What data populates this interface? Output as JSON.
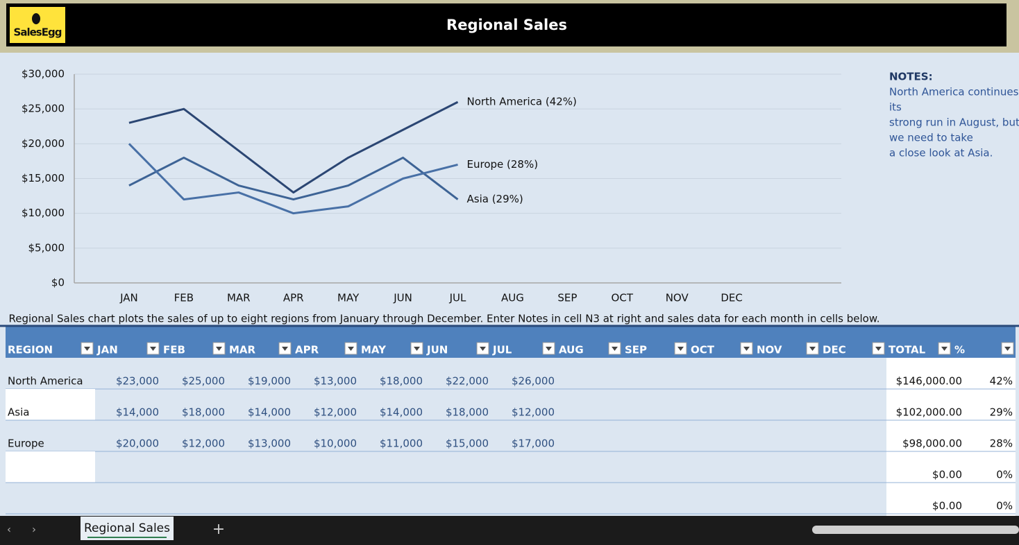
{
  "header": {
    "logo": "SalesEgg",
    "title": "Regional Sales"
  },
  "chart": {
    "type": "line",
    "categories": [
      "JAN",
      "FEB",
      "MAR",
      "APR",
      "MAY",
      "JUN",
      "JUL",
      "AUG",
      "SEP",
      "OCT",
      "NOV",
      "DEC"
    ],
    "ylim": [
      0,
      30000
    ],
    "yticks": [
      {
        "value": 0,
        "label": "$0"
      },
      {
        "value": 5000,
        "label": "$5,000"
      },
      {
        "value": 10000,
        "label": "$10,000"
      },
      {
        "value": 15000,
        "label": "$15,000"
      },
      {
        "value": 20000,
        "label": "$20,000"
      },
      {
        "value": 25000,
        "label": "$25,000"
      },
      {
        "value": 30000,
        "label": "$30,000"
      }
    ],
    "grid": true,
    "series": [
      {
        "name": "North America (42%)",
        "color": "#2b4673",
        "values": [
          23000,
          25000,
          19000,
          13000,
          18000,
          22000,
          26000,
          null,
          null,
          null,
          null,
          null
        ]
      },
      {
        "name": "Asia (29%)",
        "color": "#3d6395",
        "values": [
          14000,
          18000,
          14000,
          12000,
          14000,
          18000,
          12000,
          null,
          null,
          null,
          null,
          null
        ]
      },
      {
        "name": "Europe (28%)",
        "color": "#4870a6",
        "values": [
          20000,
          12000,
          13000,
          10000,
          11000,
          15000,
          17000,
          null,
          null,
          null,
          null,
          null
        ]
      }
    ]
  },
  "notes": {
    "title": "NOTES:",
    "lines": [
      "North America continues",
      "its",
      "strong run in August, but",
      "we need to take",
      "a close look at Asia."
    ]
  },
  "description": "Regional Sales chart plots the sales of up to eight regions from January through December. Enter Notes in cell N3 at right and sales data for each month in cells below.",
  "table": {
    "columns": [
      "REGION",
      "JAN",
      "FEB",
      "MAR",
      "APR",
      "MAY",
      "JUN",
      "JUL",
      "AUG",
      "SEP",
      "OCT",
      "NOV",
      "DEC",
      "TOTAL",
      "%"
    ],
    "rows": [
      {
        "region": "North America",
        "months": [
          "$23,000",
          "$25,000",
          "$19,000",
          "$13,000",
          "$18,000",
          "$22,000",
          "$26,000"
        ],
        "total": "$146,000.00",
        "pct": "42%"
      },
      {
        "region": "Asia",
        "months": [
          "$14,000",
          "$18,000",
          "$14,000",
          "$12,000",
          "$14,000",
          "$18,000",
          "$12,000"
        ],
        "total": "$102,000.00",
        "pct": "29%"
      },
      {
        "region": "Europe",
        "months": [
          "$20,000",
          "$12,000",
          "$13,000",
          "$10,000",
          "$11,000",
          "$15,000",
          "$17,000"
        ],
        "total": "$98,000.00",
        "pct": "28%"
      },
      {
        "total": "$0.00",
        "pct": "0%"
      },
      {
        "total": "$0.00",
        "pct": "0%"
      }
    ]
  },
  "sheet_tab": "Regional Sales"
}
